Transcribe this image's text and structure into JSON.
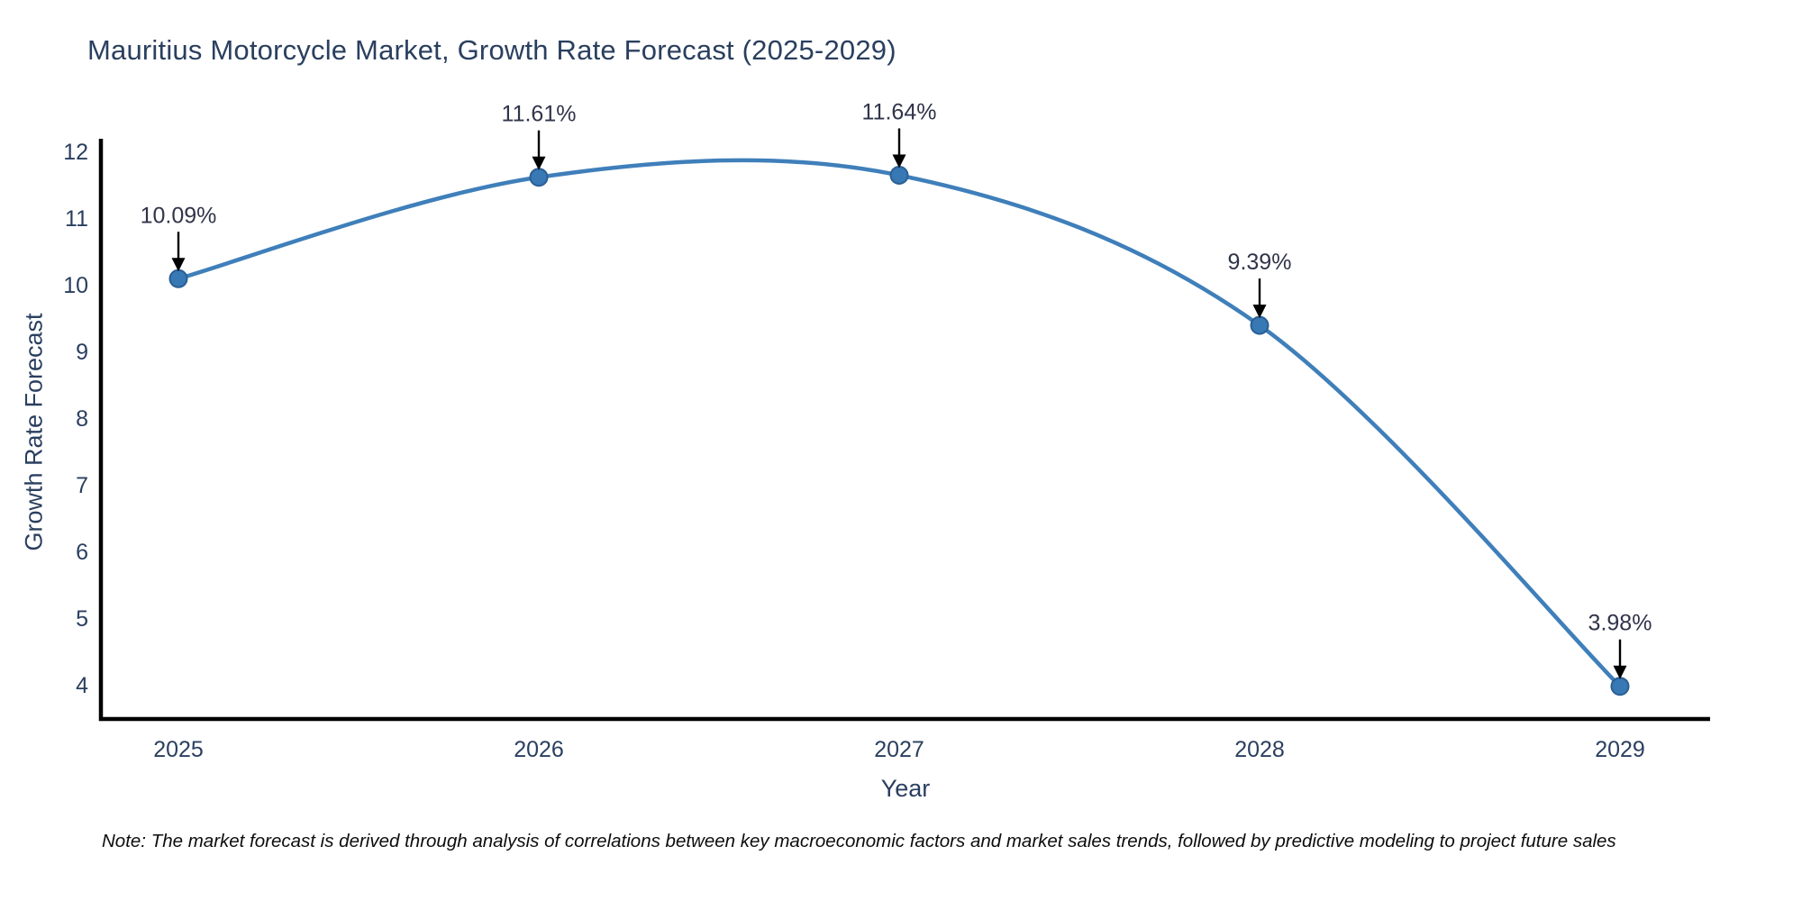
{
  "page": {
    "background": "#ffffff"
  },
  "chart_data": {
    "type": "line",
    "line_shape": "spline",
    "title": "Mauritius Motorcycle Market, Growth Rate Forecast (2025-2029)",
    "xlabel": "Year",
    "ylabel": "Growth Rate Forecast",
    "x": [
      2025,
      2026,
      2027,
      2028,
      2029
    ],
    "x_tick_labels": [
      "2025",
      "2026",
      "2027",
      "2028",
      "2029"
    ],
    "series": [
      {
        "name": "Growth Rate Forecast",
        "values": [
          10.09,
          11.61,
          11.64,
          9.39,
          3.98
        ]
      }
    ],
    "point_labels": [
      "10.09%",
      "11.61%",
      "11.64%",
      "9.39%",
      "3.98%"
    ],
    "annotations_have_arrows": true,
    "y_ticks": [
      4,
      5,
      6,
      7,
      8,
      9,
      10,
      11,
      12
    ],
    "ylim": [
      3.49,
      12.16
    ],
    "xlim": [
      2024.785,
      2029.25
    ],
    "grid": false,
    "legend_position": "none",
    "colors": {
      "line": "#3f7fba",
      "marker_fill": "#3878b4",
      "marker_edge": "#2a5f94",
      "axis": "#000000",
      "text": "#2a3f5f",
      "annotation_text": "#30344a",
      "arrow": "#000000"
    },
    "note": "Note: The market forecast is derived through analysis of correlations between key macroeconomic factors and market sales trends, followed by predictive modeling to project future sales"
  }
}
